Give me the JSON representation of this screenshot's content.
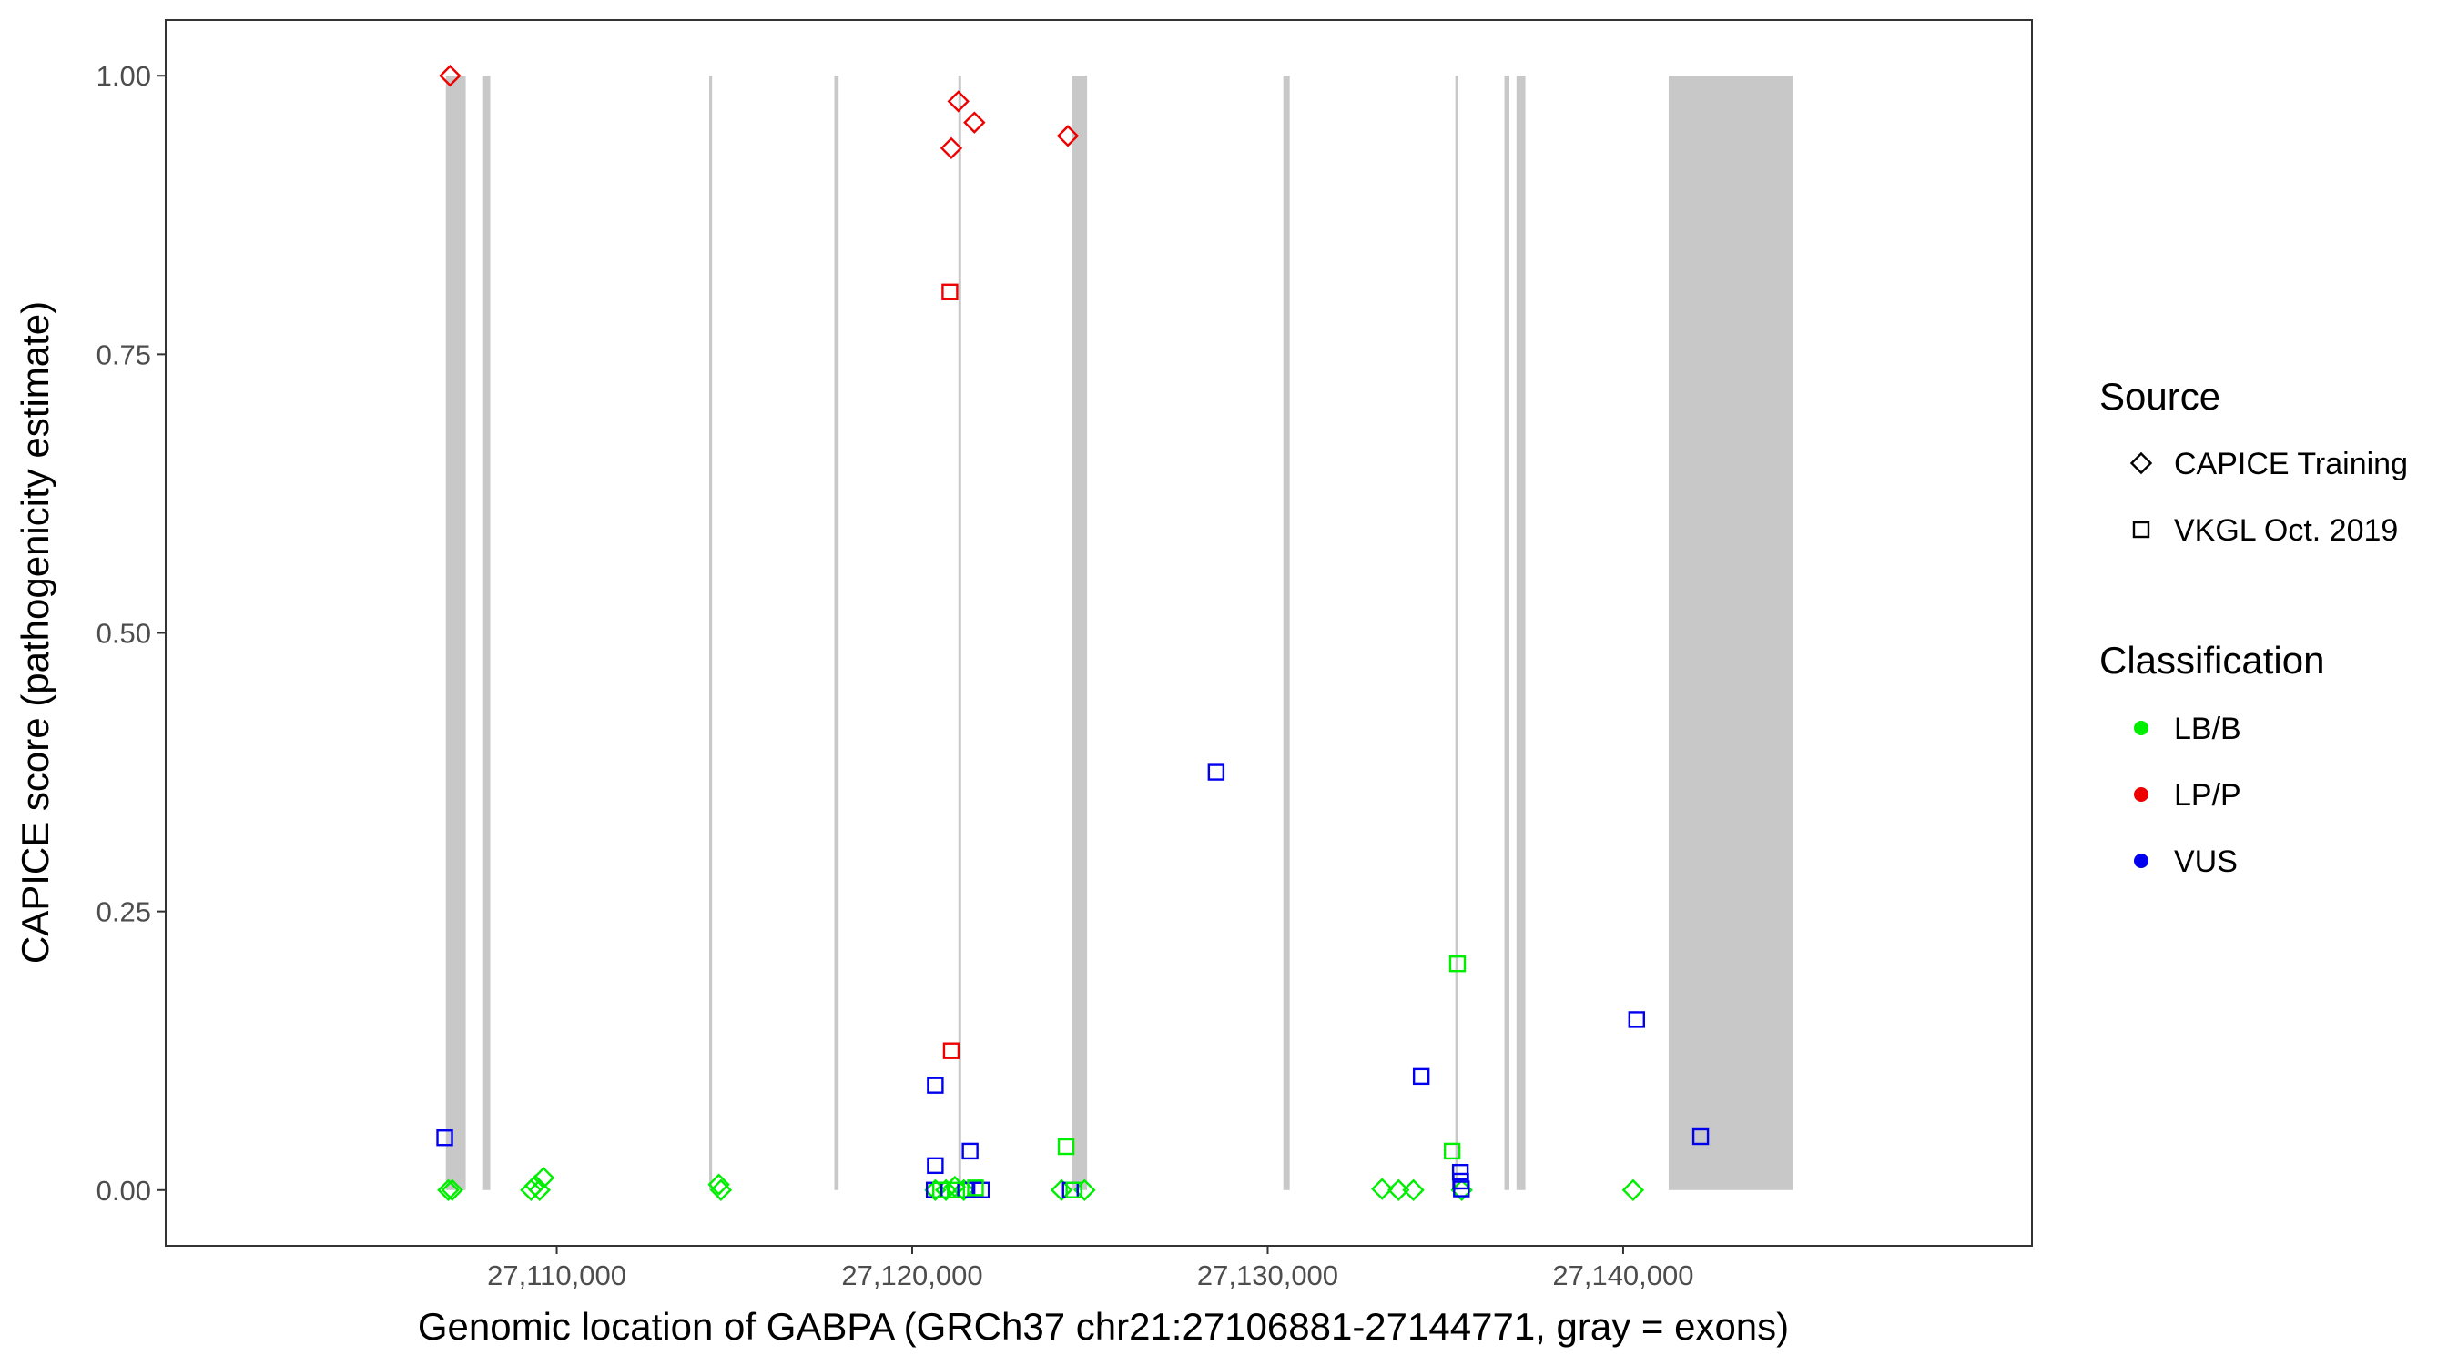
{
  "chart_data": {
    "type": "scatter",
    "title": "",
    "xlabel": "Genomic location of GABPA (GRCh37 chr21:27106881-27144771, gray = exons)",
    "ylabel": "CAPICE score (pathogenicity estimate)",
    "xlim": [
      27099000,
      27151500
    ],
    "ylim": [
      -0.05,
      1.05
    ],
    "x_ticks": [
      27110000,
      27120000,
      27130000,
      27140000
    ],
    "x_tick_labels": [
      "27,110,000",
      "27,120,000",
      "27,130,000",
      "27,140,000"
    ],
    "y_ticks": [
      0,
      0.25,
      0.5,
      0.75,
      1.0
    ],
    "y_tick_labels": [
      "0.00",
      "0.25",
      "0.50",
      "0.75",
      "1.00"
    ],
    "grid": false,
    "exons": [
      {
        "start": 27106881,
        "end": 27107440
      },
      {
        "start": 27107930,
        "end": 27108130
      },
      {
        "start": 27114290,
        "end": 27114370
      },
      {
        "start": 27117810,
        "end": 27117930
      },
      {
        "start": 27121300,
        "end": 27121370
      },
      {
        "start": 27124500,
        "end": 27124920
      },
      {
        "start": 27130440,
        "end": 27130620
      },
      {
        "start": 27135280,
        "end": 27135330
      },
      {
        "start": 27136660,
        "end": 27136800
      },
      {
        "start": 27137000,
        "end": 27137250
      },
      {
        "start": 27141280,
        "end": 27144771
      }
    ],
    "legend": {
      "position": "right",
      "source_title": "Source",
      "source_items": [
        {
          "label": "CAPICE Training",
          "shape": "diamond"
        },
        {
          "label": "VKGL Oct. 2019",
          "shape": "square"
        }
      ],
      "class_title": "Classification",
      "class_items": [
        {
          "label": "LB/B",
          "color": "#00ee00"
        },
        {
          "label": "LP/P",
          "color": "#ee0000"
        },
        {
          "label": "VUS",
          "color": "#0000ee"
        }
      ]
    },
    "series": [
      {
        "name": "CAPICE Training",
        "shape": "diamond",
        "points": [
          {
            "x": 27107000,
            "y": 1.0,
            "class": "LP/P"
          },
          {
            "x": 27121100,
            "y": 0.935,
            "class": "LP/P"
          },
          {
            "x": 27121300,
            "y": 0.977,
            "class": "LP/P"
          },
          {
            "x": 27121750,
            "y": 0.958,
            "class": "LP/P"
          },
          {
            "x": 27124380,
            "y": 0.946,
            "class": "LP/P"
          },
          {
            "x": 27106950,
            "y": 0.0,
            "class": "LB/B"
          },
          {
            "x": 27107060,
            "y": 0.0,
            "class": "LB/B"
          },
          {
            "x": 27109280,
            "y": 0.0,
            "class": "LB/B"
          },
          {
            "x": 27109400,
            "y": 0.004,
            "class": "LB/B"
          },
          {
            "x": 27109520,
            "y": 0.0,
            "class": "LB/B"
          },
          {
            "x": 27109630,
            "y": 0.011,
            "class": "LB/B"
          },
          {
            "x": 27114560,
            "y": 0.005,
            "class": "LB/B"
          },
          {
            "x": 27114620,
            "y": 0.0,
            "class": "LB/B"
          },
          {
            "x": 27120650,
            "y": 0.0,
            "class": "LB/B"
          },
          {
            "x": 27120950,
            "y": 0.0,
            "class": "LB/B"
          },
          {
            "x": 27121200,
            "y": 0.003,
            "class": "LB/B"
          },
          {
            "x": 27121450,
            "y": 0.0,
            "class": "LB/B"
          },
          {
            "x": 27124200,
            "y": 0.0,
            "class": "LB/B"
          },
          {
            "x": 27124850,
            "y": 0.0,
            "class": "LB/B"
          },
          {
            "x": 27133220,
            "y": 0.001,
            "class": "LB/B"
          },
          {
            "x": 27133680,
            "y": 0.0,
            "class": "LB/B"
          },
          {
            "x": 27134100,
            "y": 0.0,
            "class": "LB/B"
          },
          {
            "x": 27135460,
            "y": 0.0,
            "class": "LB/B"
          },
          {
            "x": 27140280,
            "y": 0.0,
            "class": "LB/B"
          }
        ]
      },
      {
        "name": "VKGL Oct. 2019",
        "shape": "square",
        "points": [
          {
            "x": 27121060,
            "y": 0.806,
            "class": "LP/P"
          },
          {
            "x": 27121100,
            "y": 0.125,
            "class": "LP/P"
          },
          {
            "x": 27128550,
            "y": 0.375,
            "class": "VUS"
          },
          {
            "x": 27142180,
            "y": 0.048,
            "class": "VUS"
          },
          {
            "x": 27140380,
            "y": 0.153,
            "class": "VUS"
          },
          {
            "x": 27134320,
            "y": 0.102,
            "class": "VUS"
          },
          {
            "x": 27120650,
            "y": 0.094,
            "class": "VUS"
          },
          {
            "x": 27121630,
            "y": 0.035,
            "class": "VUS"
          },
          {
            "x": 27120650,
            "y": 0.022,
            "class": "VUS"
          },
          {
            "x": 27106850,
            "y": 0.047,
            "class": "VUS"
          },
          {
            "x": 27120620,
            "y": 0.0,
            "class": "VUS"
          },
          {
            "x": 27121500,
            "y": 0.0,
            "class": "VUS"
          },
          {
            "x": 27121950,
            "y": 0.0,
            "class": "VUS"
          },
          {
            "x": 27124450,
            "y": 0.0,
            "class": "VUS"
          },
          {
            "x": 27135420,
            "y": 0.016,
            "class": "VUS"
          },
          {
            "x": 27135430,
            "y": 0.008,
            "class": "VUS"
          },
          {
            "x": 27135450,
            "y": 0.001,
            "class": "VUS"
          },
          {
            "x": 27135340,
            "y": 0.203,
            "class": "LB/B"
          },
          {
            "x": 27135190,
            "y": 0.035,
            "class": "LB/B"
          },
          {
            "x": 27124330,
            "y": 0.039,
            "class": "LB/B"
          },
          {
            "x": 27120800,
            "y": 0.0,
            "class": "LB/B"
          },
          {
            "x": 27121250,
            "y": 0.0,
            "class": "LB/B"
          },
          {
            "x": 27121780,
            "y": 0.002,
            "class": "LB/B"
          },
          {
            "x": 27124550,
            "y": 0.0,
            "class": "LB/B"
          }
        ]
      }
    ]
  }
}
